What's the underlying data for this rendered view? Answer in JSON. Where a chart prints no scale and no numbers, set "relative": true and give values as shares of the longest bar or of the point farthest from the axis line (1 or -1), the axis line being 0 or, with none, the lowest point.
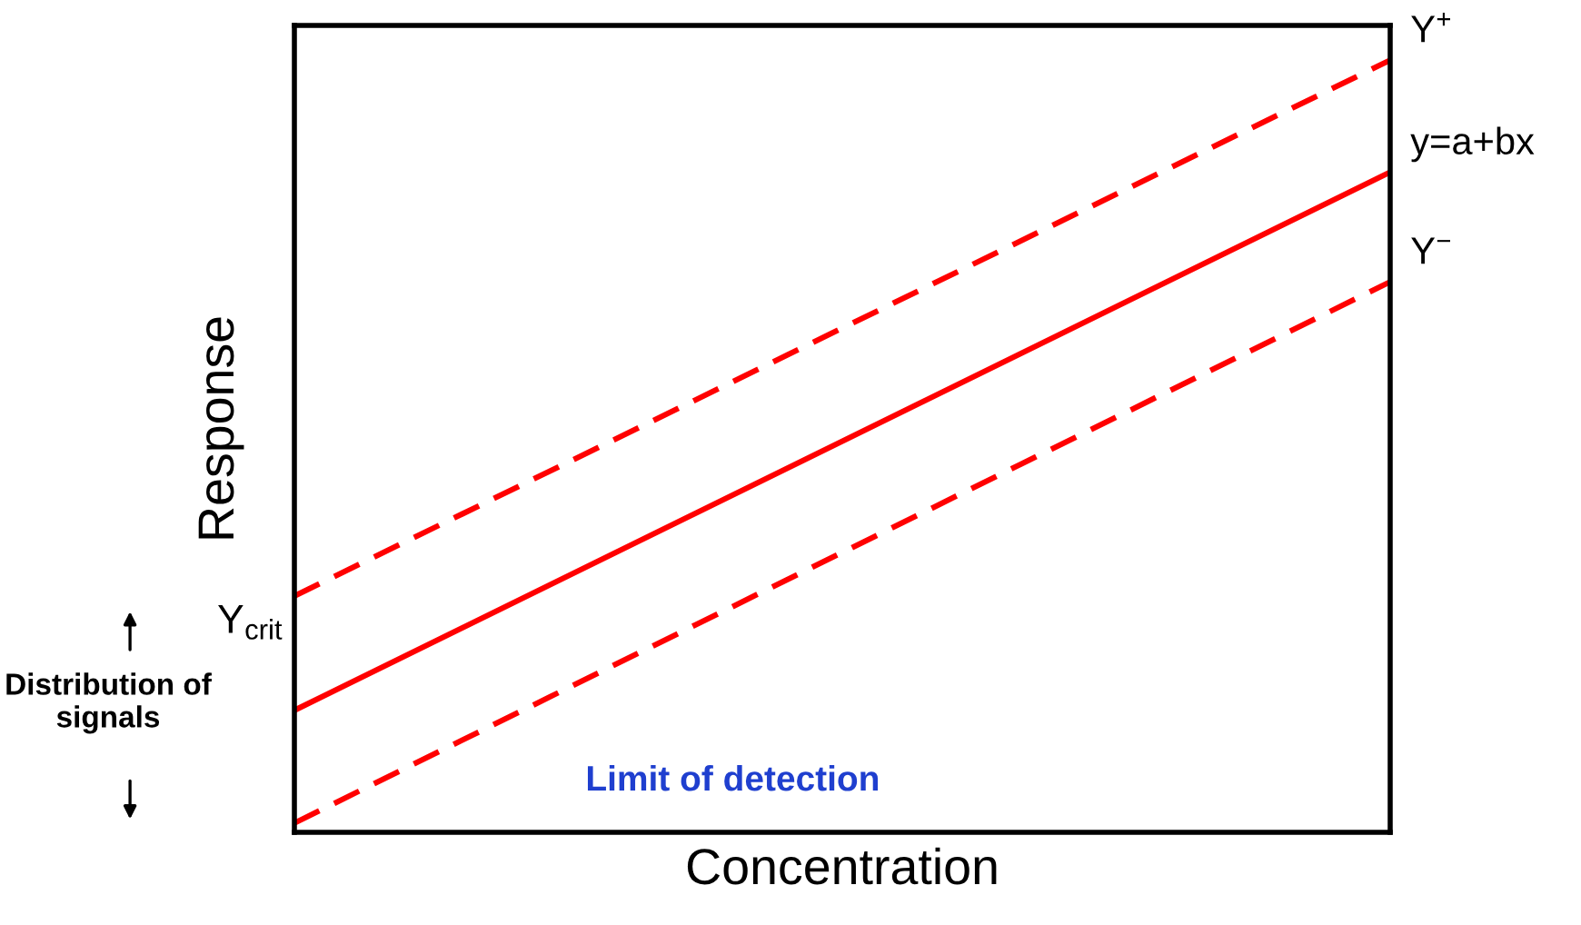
{
  "chart_data": {
    "type": "line",
    "relative": true,
    "xlabel": "Concentration",
    "ylabel": "Response",
    "categories": [
      null,
      null
    ],
    "line_style": "solid",
    "marker": "none",
    "series": [
      {
        "name": "Y$^{+}$",
        "color": "#ff0000",
        "values": [
          0.306,
          1
        ],
        "line_style": "dashed"
      },
      {
        "name": "y=a+bx",
        "color": "#ff0000",
        "values": [
          0.158,
          0.855
        ]
      },
      {
        "name": "Y$^{−}$",
        "color": "#ff0000",
        "values": [
          0.012,
          0.713
        ],
        "line_style": "dashed"
      }
    ],
    "annotations": [
      "Y$_{crit}$",
      "Distribution of signals",
      "Limit of detection"
    ]
  }
}
